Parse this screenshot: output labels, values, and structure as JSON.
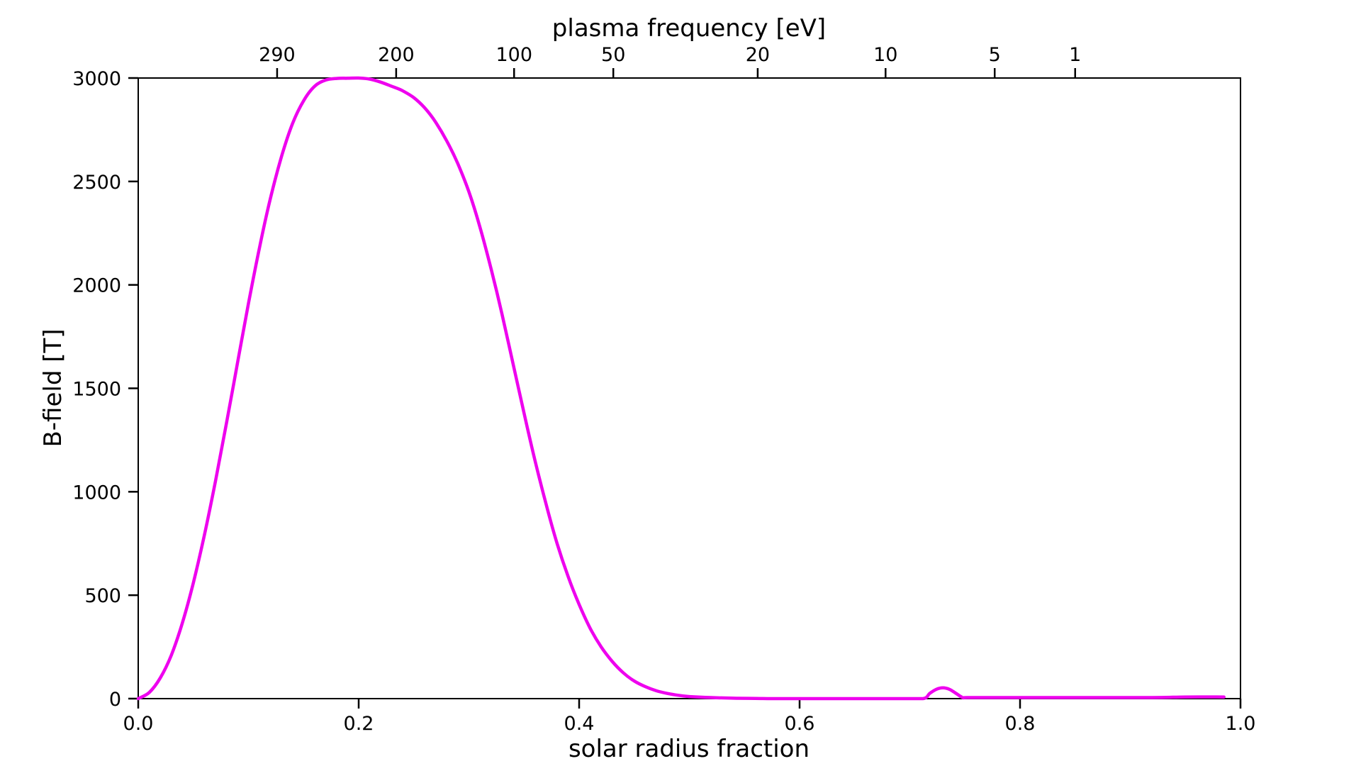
{
  "chart_data": {
    "type": "line",
    "title": "",
    "xlabel": "solar radius fraction",
    "ylabel": "B-field [T]",
    "top_xlabel": "plasma frequency [eV]",
    "xlim": [
      0.0,
      1.0
    ],
    "ylim": [
      0,
      3000
    ],
    "grid": false,
    "legend": "none",
    "x_ticks": [
      0.0,
      0.2,
      0.4,
      0.6,
      0.8,
      1.0
    ],
    "x_tick_labels": [
      "0.0",
      "0.2",
      "0.4",
      "0.6",
      "0.8",
      "1.0"
    ],
    "y_ticks": [
      0,
      500,
      1000,
      1500,
      2000,
      2500,
      3000
    ],
    "y_tick_labels": [
      "0",
      "500",
      "1000",
      "1500",
      "2000",
      "2500",
      "3000"
    ],
    "top_ticks": [
      {
        "label": "290",
        "x": 0.126
      },
      {
        "label": "200",
        "x": 0.234
      },
      {
        "label": "100",
        "x": 0.341
      },
      {
        "label": "50",
        "x": 0.431
      },
      {
        "label": "20",
        "x": 0.562
      },
      {
        "label": "10",
        "x": 0.678
      },
      {
        "label": "5",
        "x": 0.777
      },
      {
        "label": "1",
        "x": 0.85
      }
    ],
    "series": [
      {
        "color": "#ee00ee",
        "x": [
          0.0,
          0.01,
          0.02,
          0.03,
          0.04,
          0.05,
          0.06,
          0.07,
          0.08,
          0.09,
          0.1,
          0.11,
          0.12,
          0.13,
          0.14,
          0.15,
          0.16,
          0.17,
          0.18,
          0.19,
          0.2,
          0.21,
          0.22,
          0.23,
          0.235,
          0.24,
          0.25,
          0.26,
          0.27,
          0.28,
          0.29,
          0.3,
          0.31,
          0.32,
          0.33,
          0.34,
          0.35,
          0.36,
          0.37,
          0.38,
          0.39,
          0.4,
          0.41,
          0.42,
          0.43,
          0.44,
          0.45,
          0.46,
          0.47,
          0.48,
          0.49,
          0.5,
          0.52,
          0.54,
          0.56,
          0.58,
          0.6,
          0.63,
          0.66,
          0.69,
          0.712,
          0.718,
          0.724,
          0.73,
          0.736,
          0.742,
          0.748,
          0.752,
          0.78,
          0.85,
          0.92,
          0.95,
          0.985
        ],
        "y": [
          0,
          30,
          100,
          210,
          365,
          560,
          790,
          1050,
          1330,
          1620,
          1910,
          2180,
          2420,
          2620,
          2780,
          2890,
          2960,
          2990,
          2998,
          2999,
          3000,
          2995,
          2980,
          2960,
          2950,
          2938,
          2905,
          2855,
          2785,
          2695,
          2585,
          2450,
          2280,
          2080,
          1860,
          1620,
          1380,
          1150,
          940,
          750,
          590,
          455,
          340,
          250,
          180,
          125,
          85,
          58,
          38,
          25,
          16,
          10,
          5,
          2,
          1,
          0,
          0,
          0,
          0,
          0,
          0,
          25,
          45,
          52,
          45,
          25,
          5,
          5,
          5,
          5,
          5,
          8,
          8
        ]
      }
    ]
  }
}
